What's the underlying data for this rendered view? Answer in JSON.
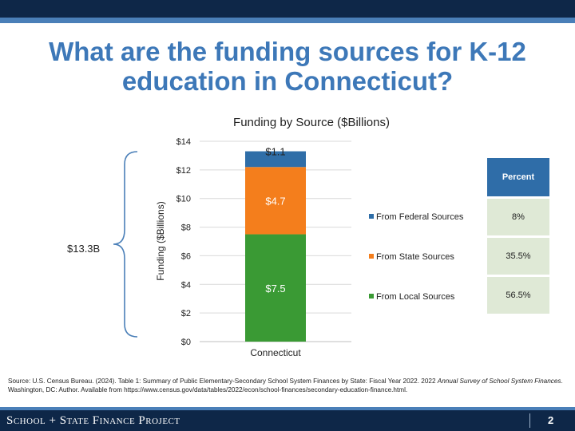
{
  "slide": {
    "title": "What are the funding sources for K-12 education in Connecticut?",
    "total_label": "$13.3B",
    "source_prefix": "Source: U.S. Census Bureau. (2024). Table 1: Summary of Public Elementary-Secondary School System Finances by State: Fiscal Year 2022. 2022 ",
    "source_italic": "Annual Survey of School System Finances",
    "source_suffix": ". Washington, DC: Author. Available from https://www.census.gov/data/tables/2022/econ/school-finances/secondary-education-finance.html.",
    "footer_org": "School + State Finance Project",
    "page_number": "2"
  },
  "percent_table": {
    "header": "Percent",
    "rows": [
      "8%",
      "35.5%",
      "56.5%"
    ]
  },
  "chart_data": {
    "type": "bar",
    "stacked": true,
    "title": "Funding by Source ($Billions)",
    "ylabel": "Funding ($Billions)",
    "xlabel": "",
    "categories": [
      "Connecticut"
    ],
    "ylim": [
      0,
      14
    ],
    "yticks": [
      "$0",
      "$2",
      "$4",
      "$6",
      "$8",
      "$10",
      "$12",
      "$14"
    ],
    "ytick_values": [
      0,
      2,
      4,
      6,
      8,
      10,
      12,
      14
    ],
    "grid": true,
    "legend_position": "right",
    "series": [
      {
        "name": "From Local Sources",
        "values": [
          7.5
        ],
        "label": "$7.5",
        "color": "#3a9a34"
      },
      {
        "name": "From State Sources",
        "values": [
          4.7
        ],
        "label": "$4.7",
        "color": "#f47e1c"
      },
      {
        "name": "From Federal Sources",
        "values": [
          1.1
        ],
        "label": "$1.1",
        "color": "#2f6ea8"
      }
    ]
  }
}
